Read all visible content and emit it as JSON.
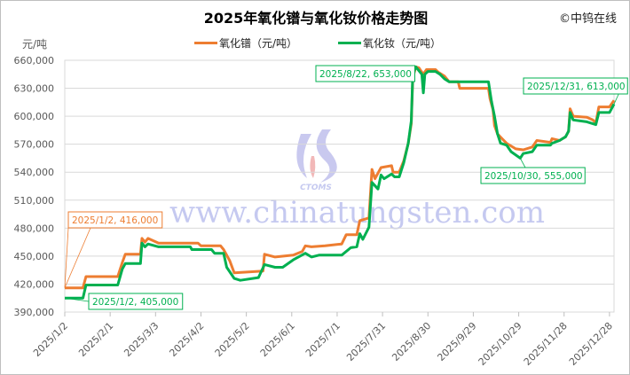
{
  "chart_data": {
    "type": "line",
    "title": "2025年氧化镨与氧化钕价格走势图",
    "copyright": "©中钨在线",
    "ylabel": "元/吨",
    "ylim": [
      390000,
      660000
    ],
    "yticks": [
      390000,
      420000,
      450000,
      480000,
      510000,
      540000,
      570000,
      600000,
      630000,
      660000
    ],
    "ytick_labels": [
      "390,000",
      "420,000",
      "450,000",
      "480,000",
      "510,000",
      "540,000",
      "570,000",
      "600,000",
      "630,000",
      "660,000"
    ],
    "xlim": [
      "2025/1/2",
      "2025/12/31"
    ],
    "xtick_labels": [
      "2025/1/2",
      "2025/2/1",
      "2025/3/3",
      "2025/4/2",
      "2025/5/2",
      "2025/6/1",
      "2025/7/1",
      "2025/7/31",
      "2025/8/30",
      "2025/9/29",
      "2025/10/29",
      "2025/11/28",
      "2025/12/28"
    ],
    "grid": "horizontal",
    "legend_position": "top",
    "watermark": {
      "text": "www.chinatungsten.com",
      "logo": "CTOMS"
    },
    "series": [
      {
        "name": "氧化镨（元/吨）",
        "color": "#ed7d31",
        "points": [
          [
            "2025/1/2",
            416000
          ],
          [
            "2025/1/14",
            416000
          ],
          [
            "2025/1/16",
            428000
          ],
          [
            "2025/2/6",
            428000
          ],
          [
            "2025/2/9",
            443000
          ],
          [
            "2025/2/11",
            452000
          ],
          [
            "2025/2/21",
            452000
          ],
          [
            "2025/2/22",
            469000
          ],
          [
            "2025/2/24",
            465000
          ],
          [
            "2025/2/26",
            469000
          ],
          [
            "2025/3/5",
            464000
          ],
          [
            "2025/3/31",
            464000
          ],
          [
            "2025/4/2",
            461000
          ],
          [
            "2025/4/15",
            461000
          ],
          [
            "2025/4/17",
            457000
          ],
          [
            "2025/4/21",
            445000
          ],
          [
            "2025/4/24",
            432000
          ],
          [
            "2025/5/13",
            434000
          ],
          [
            "2025/5/14",
            452000
          ],
          [
            "2025/5/21",
            449000
          ],
          [
            "2025/6/2",
            451000
          ],
          [
            "2025/6/8",
            455000
          ],
          [
            "2025/6/10",
            461000
          ],
          [
            "2025/6/14",
            460000
          ],
          [
            "2025/6/23",
            461000
          ],
          [
            "2025/7/4",
            463000
          ],
          [
            "2025/7/7",
            473000
          ],
          [
            "2025/7/14",
            473000
          ],
          [
            "2025/7/16",
            488000
          ],
          [
            "2025/7/22",
            491000
          ],
          [
            "2025/7/24",
            543000
          ],
          [
            "2025/7/26",
            533000
          ],
          [
            "2025/7/30",
            545000
          ],
          [
            "2025/8/6",
            547000
          ],
          [
            "2025/8/7",
            540000
          ],
          [
            "2025/8/11",
            540000
          ],
          [
            "2025/8/14",
            552000
          ],
          [
            "2025/8/17",
            571000
          ],
          [
            "2025/8/19",
            592000
          ],
          [
            "2025/8/20",
            641000
          ],
          [
            "2025/8/22",
            653000
          ],
          [
            "2025/8/24",
            652000
          ],
          [
            "2025/8/27",
            645000
          ],
          [
            "2025/8/29",
            650000
          ],
          [
            "2025/9/4",
            650000
          ],
          [
            "2025/9/6",
            647000
          ],
          [
            "2025/9/10",
            643000
          ],
          [
            "2025/9/13",
            637000
          ],
          [
            "2025/9/19",
            637000
          ],
          [
            "2025/9/20",
            630000
          ],
          [
            "2025/10/9",
            630000
          ],
          [
            "2025/10/10",
            619000
          ],
          [
            "2025/10/12",
            607000
          ],
          [
            "2025/10/13",
            590000
          ],
          [
            "2025/10/15",
            581000
          ],
          [
            "2025/10/18",
            576000
          ],
          [
            "2025/10/21",
            571000
          ],
          [
            "2025/10/27",
            565000
          ],
          [
            "2025/11/1",
            564000
          ],
          [
            "2025/11/7",
            567000
          ],
          [
            "2025/11/10",
            574000
          ],
          [
            "2025/11/19",
            572000
          ],
          [
            "2025/11/20",
            576000
          ],
          [
            "2025/11/25",
            574000
          ],
          [
            "2025/11/29",
            578000
          ],
          [
            "2025/12/1",
            584000
          ],
          [
            "2025/12/2",
            608000
          ],
          [
            "2025/12/4",
            600000
          ],
          [
            "2025/12/13",
            599000
          ],
          [
            "2025/12/17",
            596000
          ],
          [
            "2025/12/19",
            593000
          ],
          [
            "2025/12/21",
            610000
          ],
          [
            "2025/12/28",
            610000
          ],
          [
            "2025/12/31",
            617000
          ]
        ]
      },
      {
        "name": "氧化钕（元/吨）",
        "color": "#00b050",
        "points": [
          [
            "2025/1/2",
            405000
          ],
          [
            "2025/1/14",
            405000
          ],
          [
            "2025/1/16",
            419000
          ],
          [
            "2025/2/6",
            419000
          ],
          [
            "2025/2/9",
            436000
          ],
          [
            "2025/2/11",
            442000
          ],
          [
            "2025/2/21",
            442000
          ],
          [
            "2025/2/22",
            464000
          ],
          [
            "2025/2/24",
            460000
          ],
          [
            "2025/2/26",
            463000
          ],
          [
            "2025/3/5",
            460000
          ],
          [
            "2025/3/26",
            460000
          ],
          [
            "2025/3/27",
            457000
          ],
          [
            "2025/4/9",
            457000
          ],
          [
            "2025/4/11",
            453000
          ],
          [
            "2025/4/17",
            453000
          ],
          [
            "2025/4/19",
            438000
          ],
          [
            "2025/4/24",
            426000
          ],
          [
            "2025/4/28",
            424000
          ],
          [
            "2025/5/10",
            427000
          ],
          [
            "2025/5/14",
            441000
          ],
          [
            "2025/5/21",
            438000
          ],
          [
            "2025/5/26",
            438000
          ],
          [
            "2025/6/2",
            446000
          ],
          [
            "2025/6/10",
            453000
          ],
          [
            "2025/6/14",
            449000
          ],
          [
            "2025/6/19",
            451000
          ],
          [
            "2025/7/4",
            451000
          ],
          [
            "2025/7/10",
            459000
          ],
          [
            "2025/7/14",
            460000
          ],
          [
            "2025/7/16",
            474000
          ],
          [
            "2025/7/18",
            468000
          ],
          [
            "2025/7/22",
            481000
          ],
          [
            "2025/7/24",
            529000
          ],
          [
            "2025/7/28",
            522000
          ],
          [
            "2025/7/30",
            537000
          ],
          [
            "2025/8/1",
            533000
          ],
          [
            "2025/8/6",
            538000
          ],
          [
            "2025/8/8",
            535000
          ],
          [
            "2025/8/11",
            535000
          ],
          [
            "2025/8/14",
            550000
          ],
          [
            "2025/8/17",
            571000
          ],
          [
            "2025/8/19",
            595000
          ],
          [
            "2025/8/20",
            645000
          ],
          [
            "2025/8/22",
            653000
          ],
          [
            "2025/8/26",
            645000
          ],
          [
            "2025/8/27",
            625000
          ],
          [
            "2025/8/28",
            645000
          ],
          [
            "2025/8/30",
            648000
          ],
          [
            "2025/9/4",
            648000
          ],
          [
            "2025/9/7",
            645000
          ],
          [
            "2025/9/10",
            640000
          ],
          [
            "2025/9/13",
            637000
          ],
          [
            "2025/10/9",
            637000
          ],
          [
            "2025/10/11",
            616000
          ],
          [
            "2025/10/13",
            600000
          ],
          [
            "2025/10/15",
            581000
          ],
          [
            "2025/10/17",
            571000
          ],
          [
            "2025/10/21",
            569000
          ],
          [
            "2025/10/24",
            562000
          ],
          [
            "2025/10/30",
            555000
          ],
          [
            "2025/11/1",
            560000
          ],
          [
            "2025/11/7",
            562000
          ],
          [
            "2025/11/10",
            569000
          ],
          [
            "2025/11/19",
            569000
          ],
          [
            "2025/11/20",
            571000
          ],
          [
            "2025/11/25",
            574000
          ],
          [
            "2025/11/29",
            578000
          ],
          [
            "2025/12/1",
            584000
          ],
          [
            "2025/12/2",
            604000
          ],
          [
            "2025/12/4",
            596000
          ],
          [
            "2025/12/13",
            594000
          ],
          [
            "2025/12/19",
            591000
          ],
          [
            "2025/12/21",
            604000
          ],
          [
            "2025/12/28",
            604000
          ],
          [
            "2025/12/31",
            613000
          ]
        ]
      }
    ],
    "annotations": [
      {
        "text": "2025/1/2, 416,000",
        "date": "2025/1/2",
        "value": 416000,
        "series": 0
      },
      {
        "text": "2025/1/2, 405,000",
        "date": "2025/1/2",
        "value": 405000,
        "series": 1
      },
      {
        "text": "2025/8/22, 653,000",
        "date": "2025/8/22",
        "value": 653000,
        "series": 1
      },
      {
        "text": "2025/12/31, 613,000",
        "date": "2025/12/31",
        "value": 613000,
        "series": 1
      },
      {
        "text": "2025/10/30, 555,000",
        "date": "2025/10/30",
        "value": 555000,
        "series": 1
      }
    ]
  }
}
